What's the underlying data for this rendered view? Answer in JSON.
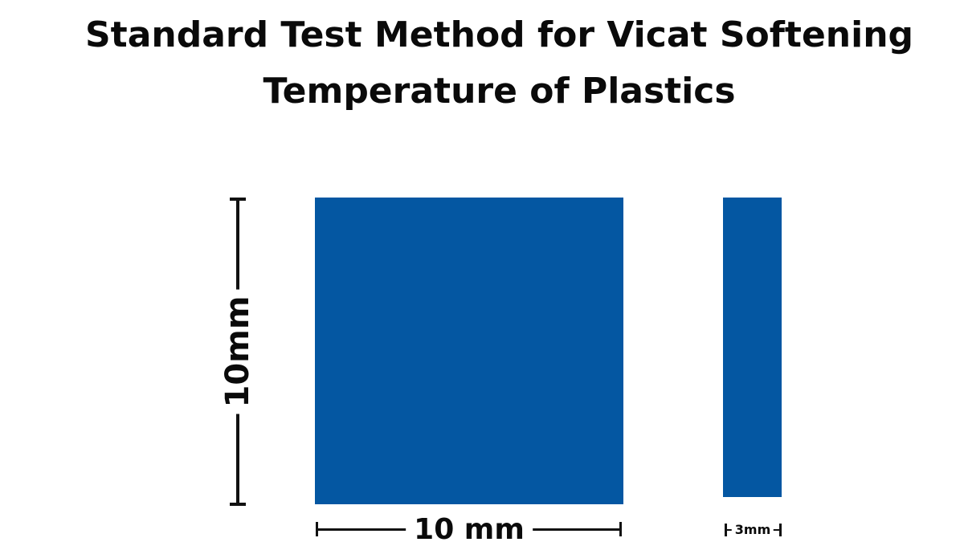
{
  "title": {
    "line1": "Standard Test Method for Vicat Softening",
    "line2": "Temperature of Plastics"
  },
  "specimen": {
    "height_label": "10mm",
    "width_label": "10 mm",
    "thickness_label": "3mm"
  },
  "colors": {
    "specimen_fill": "#0457A2",
    "dimension_line": "#111111"
  }
}
